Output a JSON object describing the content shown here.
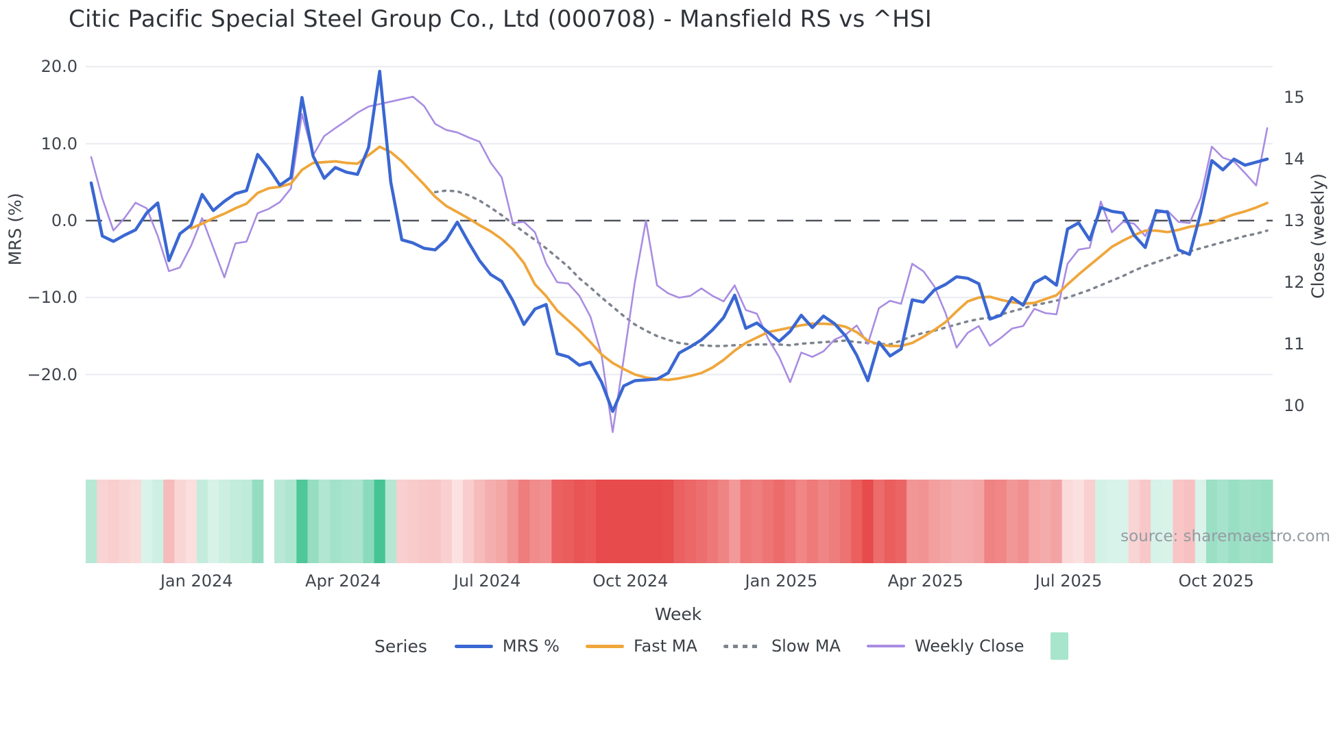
{
  "title": "Citic Pacific Special Steel Group Co., Ltd (000708) - Mansfield RS vs ^HSI",
  "source": "source: sharemaestro.com",
  "left_axis": {
    "title": "MRS (%)",
    "tick_labels": [
      "20.0",
      "10.0",
      "0.0",
      "−10.0",
      "−20.0"
    ],
    "tick_values": [
      20,
      10,
      0,
      -10,
      -20
    ],
    "zero_line_value": 0
  },
  "right_axis": {
    "title": "Close (weekly)",
    "tick_labels": [
      "15",
      "14",
      "13",
      "12",
      "11",
      "10"
    ],
    "tick_values": [
      15,
      14,
      13,
      12,
      11,
      10
    ]
  },
  "x_axis": {
    "title": "Week",
    "ticks": [
      {
        "label": "Jan 2024",
        "week": 9.5
      },
      {
        "label": "Apr 2024",
        "week": 22.7
      },
      {
        "label": "Jul 2024",
        "week": 35.7
      },
      {
        "label": "Oct 2024",
        "week": 48.6
      },
      {
        "label": "Jan 2025",
        "week": 62.2
      },
      {
        "label": "Apr 2025",
        "week": 75.2
      },
      {
        "label": "Jul 2025",
        "week": 88.1
      },
      {
        "label": "Oct 2025",
        "week": 101.4
      }
    ]
  },
  "legend": {
    "series_word": "Series",
    "items": [
      {
        "label": "MRS %",
        "color": "#3a67d2",
        "style": "solid"
      },
      {
        "label": "Fast MA",
        "color": "#efa63b",
        "style": "solid"
      },
      {
        "label": "Slow MA",
        "color": "#7e848e",
        "style": "dotted"
      },
      {
        "label": "Weekly Close",
        "color": "#a98ce2",
        "style": "thin"
      }
    ],
    "heat_swatch_color": "#a7e6cc"
  },
  "colors": {
    "mrs_line": "#3a67d2",
    "fast_ma_line": "#efa63b",
    "slow_ma_line": "#7e848e",
    "weekly_close_line": "#a98ce2",
    "gridline": "#e9ebf1",
    "zero_dash": "#4e535b",
    "heat_red_max": "#e84b4b",
    "heat_green_max": "#46c494",
    "text": "#3a3f46"
  },
  "chart_data": {
    "type": "line",
    "title": "Citic Pacific Special Steel Group Co., Ltd (000708) - Mansfield RS vs ^HSI",
    "xlabel": "Week",
    "ylabel_left": "MRS (%)",
    "ylabel_right": "Close (weekly)",
    "ylim_left": [
      -27,
      21
    ],
    "ylim_right": [
      9.6,
      15.6
    ],
    "grid": "horizontal-left-ticks-only",
    "legend_position": "bottom",
    "x_unit": "week_index",
    "weeks": 107,
    "heat_strip_gap_week": 16,
    "series": [
      {
        "name": "MRS %",
        "axis": "left",
        "values": [
          4.9,
          -2.0,
          -2.7,
          -1.9,
          -1.2,
          1.0,
          2.3,
          -5.2,
          -1.7,
          -0.6,
          3.4,
          1.3,
          2.5,
          3.5,
          3.9,
          8.6,
          6.8,
          4.6,
          5.6,
          16.0,
          8.4,
          5.5,
          6.9,
          6.3,
          6.0,
          9.5,
          19.4,
          5.0,
          -2.5,
          -2.9,
          -3.6,
          -3.8,
          -2.5,
          -0.2,
          -2.8,
          -5.2,
          -7.0,
          -7.9,
          -10.4,
          -13.5,
          -11.5,
          -10.9,
          -17.3,
          -17.7,
          -18.8,
          -18.4,
          -21.0,
          -24.8,
          -21.5,
          -20.8,
          -20.7,
          -20.6,
          -19.8,
          -17.2,
          -16.4,
          -15.5,
          -14.2,
          -12.6,
          -9.7,
          -14.0,
          -13.3,
          -14.5,
          -15.7,
          -14.4,
          -12.3,
          -13.9,
          -12.4,
          -13.4,
          -15.0,
          -17.5,
          -20.8,
          -15.8,
          -17.6,
          -16.7,
          -10.3,
          -10.6,
          -9.0,
          -8.3,
          -7.3,
          -7.5,
          -8.2,
          -12.8,
          -12.3,
          -10.0,
          -11.0,
          -8.1,
          -7.3,
          -8.4,
          -1.1,
          -0.3,
          -2.5,
          1.7,
          1.2,
          1.0,
          -1.9,
          -3.5,
          1.3,
          1.1,
          -3.8,
          -4.4,
          1.0,
          7.8,
          6.6,
          8.0,
          7.2,
          7.6,
          8.0
        ]
      },
      {
        "name": "Fast MA",
        "axis": "left",
        "values": [
          null,
          null,
          null,
          null,
          null,
          null,
          null,
          null,
          null,
          -1.0,
          -0.4,
          0.3,
          0.9,
          1.6,
          2.2,
          3.6,
          4.2,
          4.4,
          4.8,
          6.6,
          7.5,
          7.6,
          7.7,
          7.5,
          7.4,
          8.5,
          9.6,
          8.9,
          7.7,
          6.2,
          4.7,
          3.1,
          1.9,
          1.1,
          0.3,
          -0.6,
          -1.4,
          -2.4,
          -3.7,
          -5.5,
          -8.3,
          -9.8,
          -11.7,
          -13.0,
          -14.3,
          -15.8,
          -17.4,
          -18.5,
          -19.3,
          -20.0,
          -20.4,
          -20.6,
          -20.7,
          -20.5,
          -20.2,
          -19.8,
          -19.1,
          -18.1,
          -16.9,
          -15.9,
          -15.2,
          -14.5,
          -14.2,
          -13.9,
          -13.6,
          -13.4,
          -13.4,
          -13.5,
          -13.8,
          -14.5,
          -15.6,
          -16.1,
          -16.3,
          -16.3,
          -15.9,
          -15.1,
          -14.2,
          -13.2,
          -11.8,
          -10.5,
          -10.0,
          -9.9,
          -10.3,
          -10.6,
          -10.8,
          -10.7,
          -10.2,
          -9.7,
          -8.3,
          -7.0,
          -5.8,
          -4.6,
          -3.4,
          -2.6,
          -1.9,
          -1.3,
          -1.3,
          -1.5,
          -1.2,
          -0.8,
          -0.6,
          -0.3,
          0.3,
          0.8,
          1.2,
          1.7,
          2.3
        ]
      },
      {
        "name": "Slow MA",
        "axis": "left",
        "values": [
          null,
          null,
          null,
          null,
          null,
          null,
          null,
          null,
          null,
          null,
          null,
          null,
          null,
          null,
          null,
          null,
          null,
          null,
          null,
          null,
          null,
          null,
          null,
          null,
          null,
          null,
          null,
          null,
          null,
          null,
          null,
          3.7,
          3.9,
          3.8,
          3.3,
          2.6,
          1.7,
          0.7,
          -0.4,
          -1.5,
          -2.5,
          -3.6,
          -4.8,
          -6.0,
          -7.5,
          -8.7,
          -10.0,
          -11.2,
          -12.4,
          -13.5,
          -14.3,
          -15.0,
          -15.5,
          -15.9,
          -16.1,
          -16.2,
          -16.3,
          -16.3,
          -16.2,
          -16.2,
          -16.1,
          -16.1,
          -16.1,
          -16.2,
          -16.0,
          -15.9,
          -15.8,
          -15.7,
          -15.6,
          -15.8,
          -15.9,
          -16.0,
          -16.1,
          -15.6,
          -15.0,
          -14.6,
          -14.3,
          -13.9,
          -13.5,
          -13.1,
          -12.8,
          -12.6,
          -12.2,
          -11.8,
          -11.4,
          -11.0,
          -10.7,
          -10.4,
          -10.0,
          -9.5,
          -9.0,
          -8.4,
          -7.8,
          -7.2,
          -6.5,
          -5.9,
          -5.4,
          -4.9,
          -4.4,
          -4.0,
          -3.6,
          -3.2,
          -2.8,
          -2.4,
          -2.0,
          -1.7,
          -1.3
        ]
      },
      {
        "name": "Weekly Close",
        "axis": "right",
        "values": [
          14.03,
          13.36,
          12.84,
          13.04,
          13.29,
          13.2,
          12.75,
          12.18,
          12.24,
          12.59,
          13.04,
          12.56,
          12.08,
          12.63,
          12.66,
          13.12,
          13.19,
          13.3,
          13.52,
          14.73,
          14.06,
          14.37,
          14.5,
          14.62,
          14.75,
          14.85,
          14.89,
          14.93,
          14.97,
          15.01,
          14.86,
          14.57,
          14.47,
          14.43,
          14.35,
          14.28,
          13.94,
          13.7,
          12.96,
          12.98,
          12.81,
          12.31,
          12.0,
          11.98,
          11.78,
          11.44,
          10.82,
          9.57,
          10.76,
          12.0,
          13.0,
          11.95,
          11.82,
          11.75,
          11.78,
          11.9,
          11.78,
          11.69,
          11.95,
          11.55,
          11.49,
          11.09,
          10.79,
          10.38,
          10.86,
          10.79,
          10.88,
          11.07,
          11.15,
          11.3,
          11.0,
          11.58,
          11.7,
          11.65,
          12.3,
          12.18,
          11.93,
          11.5,
          10.94,
          11.18,
          11.29,
          10.97,
          11.1,
          11.25,
          11.29,
          11.57,
          11.5,
          11.48,
          12.3,
          12.53,
          12.56,
          13.31,
          12.81,
          12.98,
          12.95,
          12.75,
          13.12,
          13.16,
          12.98,
          12.96,
          13.37,
          14.2,
          14.02,
          13.96,
          13.77,
          13.57,
          14.5
        ]
      }
    ],
    "heatmap": {
      "description": "weekly strip colored by MRS % sign/magnitude: green positive, red negative, white = missing week",
      "source_series": "MRS %"
    }
  }
}
